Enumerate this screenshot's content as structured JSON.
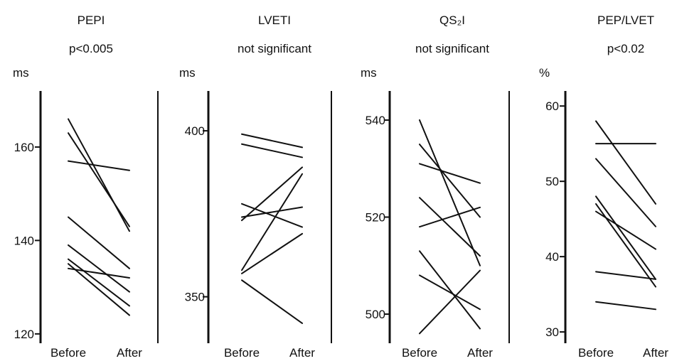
{
  "chart_data": [
    {
      "type": "line",
      "title": "PEPI",
      "subtitle": "p<0.005",
      "ylabel": "ms",
      "categories": [
        "Before",
        "After"
      ],
      "ylim": [
        118,
        172
      ],
      "yticks": [
        120,
        140,
        160
      ],
      "series": [
        {
          "values": [
            166,
            142
          ]
        },
        {
          "values": [
            163,
            143
          ]
        },
        {
          "values": [
            157,
            155
          ]
        },
        {
          "values": [
            145,
            134
          ]
        },
        {
          "values": [
            139,
            129
          ]
        },
        {
          "values": [
            136,
            126
          ]
        },
        {
          "values": [
            135,
            124
          ]
        },
        {
          "values": [
            134,
            132
          ]
        }
      ]
    },
    {
      "type": "line",
      "title": "LVETI",
      "subtitle": "not significant",
      "ylabel": "ms",
      "categories": [
        "Before",
        "After"
      ],
      "ylim": [
        336,
        412
      ],
      "yticks": [
        350,
        400
      ],
      "series": [
        {
          "values": [
            399,
            395
          ]
        },
        {
          "values": [
            396,
            392
          ]
        },
        {
          "values": [
            378,
            371
          ]
        },
        {
          "values": [
            374,
            377
          ]
        },
        {
          "values": [
            373,
            389
          ]
        },
        {
          "values": [
            358,
            387
          ]
        },
        {
          "values": [
            357,
            369
          ]
        },
        {
          "values": [
            355,
            342
          ]
        }
      ]
    },
    {
      "type": "line",
      "title": "QS₂I",
      "subtitle": "not significant",
      "ylabel": "ms",
      "categories": [
        "Before",
        "After"
      ],
      "ylim": [
        494,
        546
      ],
      "yticks": [
        500,
        520,
        540
      ],
      "series": [
        {
          "values": [
            540,
            510
          ]
        },
        {
          "values": [
            535,
            520
          ]
        },
        {
          "values": [
            531,
            527
          ]
        },
        {
          "values": [
            524,
            512
          ]
        },
        {
          "values": [
            518,
            522
          ]
        },
        {
          "values": [
            513,
            497
          ]
        },
        {
          "values": [
            508,
            501
          ]
        },
        {
          "values": [
            496,
            509
          ]
        }
      ]
    },
    {
      "type": "line",
      "title": "PEP/LVET",
      "subtitle": "p<0.02",
      "ylabel": "%",
      "categories": [
        "Before",
        "After"
      ],
      "ylim": [
        28.5,
        62
      ],
      "yticks": [
        30,
        40,
        50,
        60
      ],
      "series": [
        {
          "values": [
            58,
            47
          ]
        },
        {
          "values": [
            55,
            55
          ]
        },
        {
          "values": [
            53,
            44
          ]
        },
        {
          "values": [
            48,
            37
          ]
        },
        {
          "values": [
            47,
            36
          ]
        },
        {
          "values": [
            46,
            41
          ]
        },
        {
          "values": [
            38,
            37
          ]
        },
        {
          "values": [
            34,
            33
          ]
        }
      ]
    }
  ]
}
